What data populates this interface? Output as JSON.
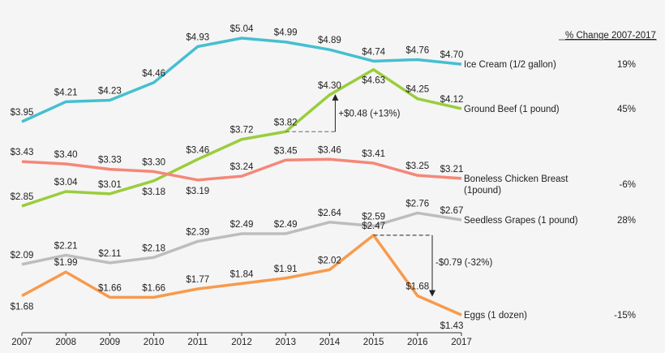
{
  "chart_data": {
    "type": "line",
    "title": "",
    "xlabel": "",
    "ylabel": "",
    "categories": [
      "2007",
      "2008",
      "2009",
      "2010",
      "2011",
      "2012",
      "2013",
      "2014",
      "2015",
      "2016",
      "2017"
    ],
    "ylim": [
      1.3,
      5.2
    ],
    "grid": false,
    "pct_header": "% Change 2007-2017",
    "series": [
      {
        "name": "Ice Cream (1/2 gallon)",
        "color": "#45bfd0",
        "pct": "19%",
        "values": [
          3.95,
          4.21,
          4.23,
          4.46,
          4.93,
          5.04,
          4.99,
          4.89,
          4.74,
          4.76,
          4.7
        ],
        "labels": [
          "$3.95",
          "$4.21",
          "$4.23",
          "$4.46",
          "$4.93",
          "$5.04",
          "$4.99",
          "$4.89",
          "$4.74",
          "$4.76",
          "$4.70"
        ]
      },
      {
        "name": "Ground Beef (1 pound)",
        "color": "#9acd3c",
        "pct": "45%",
        "values": [
          2.85,
          3.04,
          3.01,
          3.18,
          3.46,
          3.72,
          3.82,
          4.3,
          4.63,
          4.25,
          4.12
        ],
        "labels": [
          "$2.85",
          "$3.04",
          "$3.01",
          "$3.18",
          "$3.46",
          "$3.72",
          "$3.82",
          "$4.30",
          "$4.63",
          "$4.25",
          "$4.12"
        ]
      },
      {
        "name": "Boneless Chicken Breast",
        "name2": "(1pound)",
        "color": "#f58778",
        "pct": "-6%",
        "values": [
          3.43,
          3.4,
          3.33,
          3.3,
          3.19,
          3.24,
          3.45,
          3.46,
          3.41,
          3.25,
          3.21
        ],
        "labels": [
          "$3.43",
          "$3.40",
          "$3.33",
          "$3.30",
          "$3.19",
          "$3.24",
          "$3.45",
          "$3.46",
          "$3.41",
          "$3.25",
          "$3.21"
        ]
      },
      {
        "name": "Seedless Grapes (1 pound)",
        "color": "#bdbdbd",
        "pct": "28%",
        "values": [
          2.09,
          2.21,
          2.11,
          2.18,
          2.39,
          2.49,
          2.49,
          2.64,
          2.59,
          2.76,
          2.67
        ],
        "labels": [
          "$2.09",
          "$2.21",
          "$2.11",
          "$2.18",
          "$2.39",
          "$2.49",
          "$2.49",
          "$2.64",
          "$2.59",
          "$2.76",
          "$2.67"
        ]
      },
      {
        "name": "Eggs (1 dozen)",
        "color": "#f89a4c",
        "pct": "-15%",
        "values": [
          1.68,
          1.99,
          1.66,
          1.66,
          1.77,
          1.84,
          1.91,
          2.02,
          2.47,
          1.68,
          1.43
        ],
        "labels": [
          "$1.68",
          "$1.99",
          "$1.66",
          "$1.66",
          "$1.77",
          "$1.84",
          "$1.91",
          "$2.02",
          "$2.47",
          "$1.68",
          "$1.43"
        ]
      }
    ],
    "annotations": [
      {
        "text": "+$0.48 (+13%)",
        "series": "Ground Beef (1 pound)",
        "from": "2013",
        "to": "2014"
      },
      {
        "text": "-$0.79 (-32%)",
        "series": "Eggs (1 dozen)",
        "from": "2015",
        "to": "2016"
      }
    ]
  }
}
